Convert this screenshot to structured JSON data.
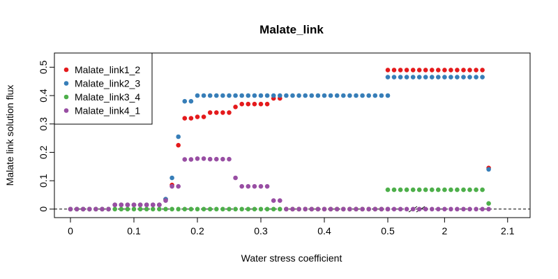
{
  "chart_data": {
    "type": "scatter",
    "title": "Malate_link",
    "xlabel": "Water stress coefficient",
    "ylabel": "Malate link solution flux",
    "x_tick_labels": [
      "0",
      "0.1",
      "0.2",
      "0.3",
      "0.4",
      "0.5",
      "2",
      "2.1"
    ],
    "y_tick_labels": [
      "0",
      "0.1",
      "0.2",
      "0.3",
      "0.4",
      "0.5"
    ],
    "ylim": [
      -0.03,
      0.55
    ],
    "x": [
      0,
      0.01,
      0.02,
      0.03,
      0.04,
      0.05,
      0.06,
      0.07,
      0.08,
      0.09,
      0.1,
      0.11,
      0.12,
      0.13,
      0.14,
      0.15,
      0.16,
      0.17,
      0.18,
      0.19,
      0.2,
      0.21,
      0.22,
      0.23,
      0.24,
      0.25,
      0.26,
      0.27,
      0.28,
      0.29,
      0.3,
      0.31,
      0.32,
      0.33,
      0.34,
      0.35,
      0.36,
      0.37,
      0.38,
      0.39,
      0.4,
      0.41,
      0.42,
      0.43,
      0.44,
      0.45,
      0.46,
      0.47,
      0.48,
      0.49,
      0.5,
      1.91,
      1.92,
      1.93,
      1.94,
      1.95,
      1.96,
      1.97,
      1.98,
      1.99,
      2.0,
      2.01,
      2.02,
      2.03,
      2.04,
      2.05,
      2.06,
      2.07
    ],
    "axis_break": "between 0.5 and 2",
    "reference_line": {
      "y": 0,
      "style": "dashed"
    },
    "legend_position": "top-left",
    "series": [
      {
        "name": "Malate_link1_2",
        "color": "#e41a1c",
        "values": [
          0,
          0,
          0,
          0,
          0,
          0,
          0,
          0.015,
          0.015,
          0.015,
          0.015,
          0.015,
          0.015,
          0.015,
          0.015,
          0.035,
          0.085,
          0.225,
          0.32,
          0.32,
          0.325,
          0.325,
          0.34,
          0.34,
          0.34,
          0.34,
          0.36,
          0.37,
          0.37,
          0.37,
          0.37,
          0.37,
          0.39,
          0.39,
          0,
          0,
          0,
          0,
          0,
          0,
          0,
          0,
          0,
          0,
          0,
          0,
          0,
          0,
          0,
          0,
          0,
          0.49,
          0.49,
          0.49,
          0.49,
          0.49,
          0.49,
          0.49,
          0.49,
          0.49,
          0.49,
          0.49,
          0.49,
          0.49,
          0.49,
          0.49,
          0.49,
          0.145
        ]
      },
      {
        "name": "Malate_link2_3",
        "color": "#377eb8",
        "values": [
          0,
          0,
          0,
          0,
          0,
          0,
          0,
          0.015,
          0.015,
          0.015,
          0.015,
          0.015,
          0.015,
          0.015,
          0.015,
          0.035,
          0.11,
          0.255,
          0.38,
          0.38,
          0.4,
          0.4,
          0.4,
          0.4,
          0.4,
          0.4,
          0.4,
          0.4,
          0.4,
          0.4,
          0.4,
          0.4,
          0.4,
          0.4,
          0.4,
          0.4,
          0.4,
          0.4,
          0.4,
          0.4,
          0.4,
          0.4,
          0.4,
          0.4,
          0.4,
          0.4,
          0.4,
          0.4,
          0.4,
          0.4,
          0.4,
          0.465,
          0.465,
          0.465,
          0.465,
          0.465,
          0.465,
          0.465,
          0.465,
          0.465,
          0.465,
          0.465,
          0.465,
          0.465,
          0.465,
          0.465,
          0.465,
          0.14
        ]
      },
      {
        "name": "Malate_link3_4",
        "color": "#4daf4a",
        "values": [
          0,
          0,
          0,
          0,
          0,
          0,
          0,
          0,
          0,
          0,
          0,
          0,
          0,
          0,
          0,
          0,
          0,
          0,
          0,
          0,
          0,
          0,
          0,
          0,
          0,
          0,
          0,
          0,
          0,
          0,
          0,
          0,
          0,
          0,
          0,
          0,
          0,
          0,
          0,
          0,
          0,
          0,
          0,
          0,
          0,
          0,
          0,
          0,
          0,
          0,
          0,
          0.068,
          0.068,
          0.068,
          0.068,
          0.068,
          0.068,
          0.068,
          0.068,
          0.068,
          0.068,
          0.068,
          0.068,
          0.068,
          0.068,
          0.068,
          0.068,
          0.02
        ]
      },
      {
        "name": "Malate_link4_1",
        "color": "#984ea3",
        "values": [
          0,
          0,
          0,
          0,
          0,
          0,
          0,
          0.015,
          0.015,
          0.015,
          0.015,
          0.015,
          0.015,
          0.015,
          0.015,
          0.03,
          0.08,
          0.08,
          0.175,
          0.175,
          0.178,
          0.178,
          0.176,
          0.176,
          0.176,
          0.176,
          0.11,
          0.08,
          0.08,
          0.08,
          0.08,
          0.08,
          0.03,
          0.03,
          0,
          0,
          0,
          0,
          0,
          0,
          0,
          0,
          0,
          0,
          0,
          0,
          0,
          0,
          0,
          0,
          0,
          0,
          0,
          0,
          0,
          0,
          0,
          0,
          0,
          0,
          0,
          0,
          0,
          0,
          0,
          0,
          0,
          0
        ]
      }
    ]
  }
}
